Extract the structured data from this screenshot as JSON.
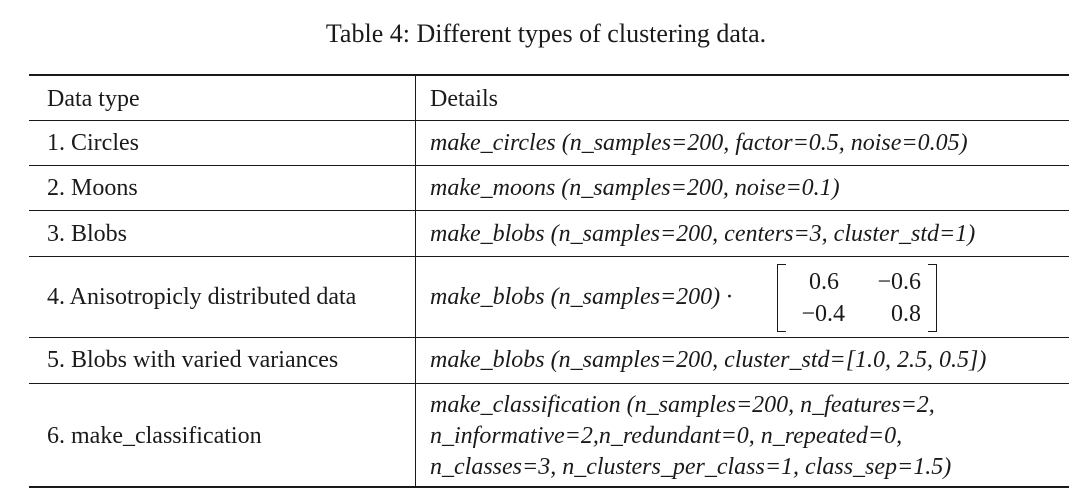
{
  "caption": "Table 4: Different types of clustering data.",
  "table": {
    "headers": [
      "Data type",
      "Details"
    ],
    "rows": [
      {
        "type": "1. Circles",
        "details": [
          "make_circles (n_samples=200, factor=0.5, noise=0.05)"
        ]
      },
      {
        "type": "2. Moons",
        "details": [
          "make_moons (n_samples=200, noise=0.1)"
        ]
      },
      {
        "type": "3. Blobs",
        "details": [
          "make_blobs (n_samples=200, centers=3, cluster_std=1)"
        ]
      },
      {
        "type": "4. Anisotropicly distributed data",
        "details": [
          "make_blobs (n_samples=200) ·"
        ],
        "matrix": [
          [
            "0.6",
            "−0.6"
          ],
          [
            "−0.4",
            "0.8"
          ]
        ]
      },
      {
        "type": "5. Blobs with varied variances",
        "details": [
          "make_blobs (n_samples=200, cluster_std=[1.0, 2.5, 0.5])"
        ]
      },
      {
        "type": "6. make_classification",
        "details": [
          "make_classification (n_samples=200, n_features=2,",
          "n_informative=2,n_redundant=0, n_repeated=0,",
          "n_classes=3, n_clusters_per_class=1, class_sep=1.5)"
        ]
      }
    ]
  }
}
